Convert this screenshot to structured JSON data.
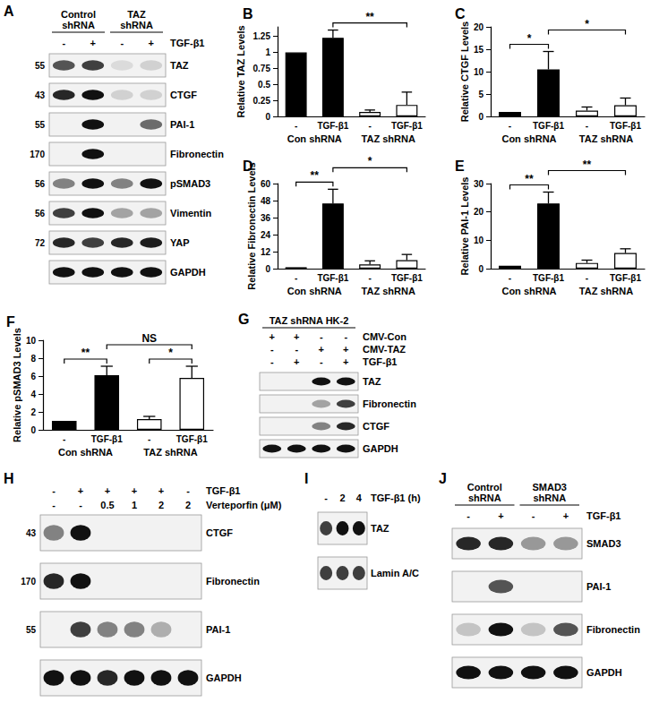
{
  "chart_data": [
    {
      "type": "bar",
      "title": "B",
      "ylabel": "Relative TAZ Levels",
      "categories": [
        "-",
        "TGF-β1",
        "-",
        "TGF-β1"
      ],
      "groups": [
        {
          "label": "Con shRNA",
          "from": 0,
          "to": 1
        },
        {
          "label": "TAZ shRNA",
          "from": 2,
          "to": 3
        }
      ],
      "values": [
        1,
        1.23,
        0.07,
        0.18
      ],
      "errors": [
        null,
        0.12,
        0.03,
        0.2
      ],
      "colors": [
        "#000000",
        "#000000",
        "#ffffff",
        "#ffffff"
      ],
      "ylim": [
        0,
        1.4
      ],
      "yticks": [
        0,
        0.25,
        0.5,
        0.75,
        1,
        1.25
      ],
      "annotations": [
        {
          "from": 1,
          "to": 3,
          "text": "**"
        }
      ],
      "grid": false
    },
    {
      "type": "bar",
      "title": "C",
      "ylabel": "Relative CTGF Levels",
      "categories": [
        "-",
        "TGF-β1",
        "-",
        "TGF-β1"
      ],
      "groups": [
        {
          "label": "Con shRNA",
          "from": 0,
          "to": 1
        },
        {
          "label": "TAZ shRNA",
          "from": 2,
          "to": 3
        }
      ],
      "values": [
        1,
        10.5,
        1.3,
        2.5
      ],
      "errors": [
        null,
        4,
        0.8,
        1.6
      ],
      "colors": [
        "#000000",
        "#000000",
        "#ffffff",
        "#ffffff"
      ],
      "ylim": [
        0,
        20
      ],
      "yticks": [
        0,
        5,
        10,
        15,
        20
      ],
      "annotations": [
        {
          "from": 0,
          "to": 1,
          "text": "*"
        },
        {
          "from": 1,
          "to": 3,
          "text": "*"
        }
      ],
      "grid": false
    },
    {
      "type": "bar",
      "title": "D",
      "ylabel": "Relative Fibronectin Levels",
      "categories": [
        "-",
        "TGF-β1",
        "-",
        "TGF-β1"
      ],
      "groups": [
        {
          "label": "Con shRNA",
          "from": 0,
          "to": 1
        },
        {
          "label": "TAZ shRNA",
          "from": 2,
          "to": 3
        }
      ],
      "values": [
        1,
        46,
        3,
        6
      ],
      "errors": [
        null,
        10,
        2.5,
        4
      ],
      "colors": [
        "#000000",
        "#000000",
        "#ffffff",
        "#ffffff"
      ],
      "ylim": [
        0,
        60
      ],
      "yticks": [
        0,
        12,
        24,
        36,
        48,
        60
      ],
      "annotations": [
        {
          "from": 0,
          "to": 1,
          "text": "**"
        },
        {
          "from": 1,
          "to": 3,
          "text": "*"
        }
      ],
      "grid": false
    },
    {
      "type": "bar",
      "title": "E",
      "ylabel": "Relative PAI-1 Levels",
      "categories": [
        "-",
        "TGF-β1",
        "-",
        "TGF-β1"
      ],
      "groups": [
        {
          "label": "Con shRNA",
          "from": 0,
          "to": 1
        },
        {
          "label": "TAZ shRNA",
          "from": 2,
          "to": 3
        }
      ],
      "values": [
        1,
        23,
        2,
        5.5
      ],
      "errors": [
        null,
        4,
        1,
        1.5
      ],
      "colors": [
        "#000000",
        "#000000",
        "#ffffff",
        "#ffffff"
      ],
      "ylim": [
        0,
        30
      ],
      "yticks": [
        0,
        10,
        20,
        30
      ],
      "annotations": [
        {
          "from": 0,
          "to": 1,
          "text": "**"
        },
        {
          "from": 1,
          "to": 3,
          "text": "**"
        }
      ],
      "grid": false
    },
    {
      "type": "bar",
      "title": "F",
      "ylabel": "Relative pSMAD3 Levels",
      "categories": [
        "-",
        "TGF-β1",
        "-",
        "TGF-β1"
      ],
      "groups": [
        {
          "label": "Con shRNA",
          "from": 0,
          "to": 1
        },
        {
          "label": "TAZ shRNA",
          "from": 2,
          "to": 3
        }
      ],
      "values": [
        1,
        6.1,
        1.2,
        5.8
      ],
      "errors": [
        null,
        1,
        0.3,
        1.3
      ],
      "colors": [
        "#000000",
        "#000000",
        "#ffffff",
        "#ffffff"
      ],
      "ylim": [
        0,
        10
      ],
      "yticks": [
        0,
        2,
        4,
        6,
        8,
        10
      ],
      "annotations": [
        {
          "from": 0,
          "to": 1,
          "text": "**"
        },
        {
          "from": 2,
          "to": 3,
          "text": "*"
        },
        {
          "from": 1,
          "to": 3,
          "text": "NS"
        }
      ],
      "grid": false
    }
  ],
  "blots": [
    {
      "panel": "A",
      "headers": [
        {
          "text": "Control shRNA",
          "from": 0,
          "to": 1
        },
        {
          "text": "TAZ shRNA",
          "from": 2,
          "to": 3
        }
      ],
      "conditions": [
        {
          "label": "TGF-β1",
          "values": [
            "-",
            "+",
            "-",
            "+"
          ]
        }
      ],
      "rows": [
        {
          "marker": 55,
          "name": "TAZ",
          "bands": [
            0.7,
            0.8,
            0.1,
            0.15
          ]
        },
        {
          "marker": 43,
          "name": "CTGF",
          "bands": [
            0.9,
            1,
            0.15,
            0.15
          ]
        },
        {
          "marker": 55,
          "name": "PAI-1",
          "bands": [
            0,
            1,
            0,
            0.6
          ]
        },
        {
          "marker": 170,
          "name": "Fibronectin",
          "bands": [
            0,
            1,
            0,
            0
          ]
        },
        {
          "marker": 56,
          "name": "pSMAD3",
          "bands": [
            0.5,
            1,
            0.5,
            1
          ]
        },
        {
          "marker": 56,
          "name": "Vimentin",
          "bands": [
            0.8,
            1,
            0.35,
            0.35
          ]
        },
        {
          "marker": 72,
          "name": "YAP",
          "bands": [
            0.9,
            0.8,
            0.9,
            0.95
          ]
        },
        {
          "name": "GAPDH",
          "bands": [
            1,
            1,
            1,
            1
          ]
        }
      ]
    },
    {
      "panel": "G",
      "headers": [
        {
          "text": "TAZ shRNA HK-2",
          "from": 0,
          "to": 3
        }
      ],
      "conditions": [
        {
          "label": "CMV-Con",
          "values": [
            "+",
            "+",
            "-",
            "-"
          ]
        },
        {
          "label": "CMV-TAZ",
          "values": [
            "-",
            "-",
            "+",
            "+"
          ]
        },
        {
          "label": "TGF-β1",
          "values": [
            "-",
            "+",
            "-",
            "+"
          ]
        }
      ],
      "rows": [
        {
          "name": "TAZ",
          "bands": [
            0,
            0,
            1,
            1
          ]
        },
        {
          "name": "Fibronectin",
          "bands": [
            0,
            0,
            0.35,
            0.8
          ]
        },
        {
          "name": "CTGF",
          "bands": [
            0,
            0,
            0.5,
            0.9
          ]
        },
        {
          "name": "GAPDH",
          "bands": [
            1,
            1,
            1,
            1
          ]
        }
      ]
    },
    {
      "panel": "H",
      "headers": [],
      "conditions": [
        {
          "label": "TGF-β1",
          "values": [
            "-",
            "+",
            "+",
            "+",
            "+",
            "-"
          ]
        },
        {
          "label": "Verteporfin (μM)",
          "values": [
            "-",
            "-",
            "0.5",
            "1",
            "2",
            "2"
          ]
        }
      ],
      "rows": [
        {
          "marker": 43,
          "name": "CTGF",
          "bands": [
            0.5,
            1,
            0,
            0,
            0,
            0
          ]
        },
        {
          "marker": 170,
          "name": "Fibronectin",
          "bands": [
            0.9,
            1,
            0,
            0,
            0,
            0
          ]
        },
        {
          "marker": 55,
          "name": "PAI-1",
          "bands": [
            0,
            0.8,
            0.5,
            0.5,
            0.3,
            0
          ]
        },
        {
          "name": "GAPDH",
          "bands": [
            1,
            1,
            0.9,
            1,
            1,
            1
          ]
        }
      ]
    },
    {
      "panel": "I",
      "headers": [],
      "conditions": [
        {
          "label": "TGF-β1 (h)",
          "values": [
            "-",
            "2",
            "4"
          ]
        }
      ],
      "rows": [
        {
          "name": "TAZ",
          "bands": [
            0.8,
            1,
            1
          ]
        },
        {
          "name": "Lamin A/C",
          "bands": [
            0.8,
            0.8,
            0.8
          ]
        }
      ]
    },
    {
      "panel": "J",
      "headers": [
        {
          "text": "Control shRNA",
          "from": 0,
          "to": 1
        },
        {
          "text": "SMAD3 shRNA",
          "from": 2,
          "to": 3
        }
      ],
      "conditions": [
        {
          "label": "TGF-β1",
          "values": [
            "-",
            "+",
            "-",
            "+"
          ]
        }
      ],
      "rows": [
        {
          "name": "SMAD3",
          "bands": [
            0.9,
            0.9,
            0.4,
            0.4
          ]
        },
        {
          "name": "PAI-1",
          "bands": [
            0,
            0.7,
            0,
            0
          ]
        },
        {
          "name": "Fibronectin",
          "bands": [
            0.2,
            1,
            0.2,
            0.7
          ]
        },
        {
          "name": "GAPDH",
          "bands": [
            1,
            1,
            1,
            1
          ]
        }
      ]
    }
  ]
}
